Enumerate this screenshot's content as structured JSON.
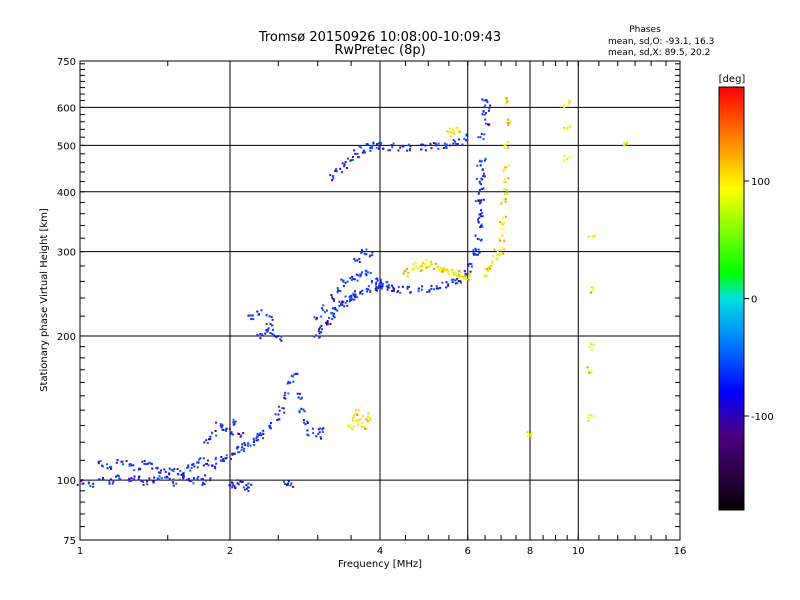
{
  "chart_data": {
    "type": "scatter",
    "title": "Tromsø 20150926 10:08:00-10:09:43",
    "subtitle": "RwPretec (8p)",
    "xlabel": "Frequency [MHz]",
    "ylabel": "Stationary phase Virtual Height [km]",
    "x_scale": "log",
    "y_scale": "log",
    "xlim": [
      1,
      16
    ],
    "ylim": [
      75,
      750
    ],
    "x_ticks": [
      1,
      2,
      4,
      6,
      8,
      10,
      16
    ],
    "x_tick_labels": [
      "1",
      "2",
      "4",
      "6",
      "8",
      "10",
      "16"
    ],
    "x_grid_major": [
      2,
      4,
      6,
      8,
      10
    ],
    "y_ticks": [
      75,
      100,
      200,
      300,
      400,
      500,
      600,
      750
    ],
    "y_tick_labels": [
      "75",
      "100",
      "200",
      "300",
      "400",
      "500",
      "600",
      "750"
    ],
    "y_grid_major": [
      100,
      200,
      300,
      400,
      500,
      600
    ],
    "grid": true,
    "info": {
      "heading": "Phases",
      "line1": "mean, sd,O: -93.1, 16.3",
      "line2": "mean, sd,X:  89.5, 20.2"
    },
    "colorbar": {
      "label": "[deg]",
      "range": [
        -180,
        180
      ],
      "ticks": [
        -100,
        0,
        100
      ],
      "tick_labels": [
        "-100",
        "0",
        "100"
      ]
    },
    "series": [
      {
        "name": "O",
        "color_hint": "blue/purple (phase ≈ -93°)",
        "traces": [
          {
            "x": [
              1.0,
              1.05,
              1.1,
              1.15,
              1.2,
              1.25,
              1.3,
              1.35,
              1.4,
              1.45,
              1.5,
              1.55,
              1.6,
              1.65,
              1.7,
              1.75,
              1.8
            ],
            "y": [
              99,
              98,
              100,
              99,
              101,
              100,
              102,
              99,
              100,
              101,
              100,
              99,
              101,
              100,
              100,
              99,
              101
            ]
          },
          {
            "x": [
              1.1,
              1.15,
              1.2,
              1.25,
              1.3,
              1.35,
              1.4,
              1.45,
              1.5
            ],
            "y": [
              108,
              107,
              109,
              108,
              106,
              108,
              107,
              105,
              104
            ]
          },
          {
            "x": [
              1.55,
              1.6,
              1.65,
              1.7,
              1.75,
              1.8,
              1.85,
              1.9,
              1.95,
              2.0,
              2.05,
              2.1,
              2.15,
              2.2,
              2.25,
              2.3
            ],
            "y": [
              104,
              103,
              106,
              108,
              110,
              109,
              107,
              110,
              111,
              112,
              115,
              116,
              118,
              120,
              122,
              124
            ]
          },
          {
            "x": [
              1.8,
              1.85,
              1.9,
              1.95,
              2.0,
              2.05,
              2.1
            ],
            "y": [
              120,
              125,
              130,
              128,
              126,
              132,
              124
            ]
          },
          {
            "x": [
              2.3,
              2.4,
              2.5,
              2.55,
              2.6,
              2.65,
              2.7,
              2.75,
              2.8,
              2.85,
              2.9,
              3.0,
              3.05
            ],
            "y": [
              125,
              130,
              135,
              140,
              150,
              160,
              165,
              150,
              140,
              132,
              126,
              124,
              128
            ]
          },
          {
            "x": [
              2.0,
              2.05,
              2.1,
              2.15,
              2.2
            ],
            "y": [
              98,
              97,
              99,
              96,
              98
            ]
          },
          {
            "x": [
              2.3,
              2.35,
              2.4,
              2.45,
              2.5
            ],
            "y": [
              200,
              205,
              210,
              203,
              198
            ]
          },
          {
            "x": [
              2.6,
              2.65
            ],
            "y": [
              99,
              98
            ]
          },
          {
            "x": [
              2.2,
              2.3,
              2.4
            ],
            "y": [
              220,
              225,
              218
            ]
          },
          {
            "x": [
              3.0,
              3.05,
              3.1,
              3.15,
              3.2,
              3.25,
              3.3,
              3.35,
              3.4,
              3.45,
              3.5,
              3.55,
              3.6,
              3.7,
              3.8,
              3.9,
              4.0
            ],
            "y": [
              200,
              205,
              210,
              215,
              220,
              225,
              230,
              232,
              235,
              238,
              240,
              242,
              245,
              248,
              250,
              252,
              255
            ]
          },
          {
            "x": [
              3.0,
              3.1,
              3.2,
              3.3,
              3.4,
              3.5,
              3.6,
              3.7,
              3.8,
              3.9,
              4.0,
              4.1,
              4.2
            ],
            "y": [
              220,
              228,
              240,
              250,
              258,
              262,
              265,
              268,
              270,
              262,
              258,
              255,
              252
            ]
          },
          {
            "x": [
              4.0,
              4.2,
              4.4,
              4.6,
              4.8,
              5.0,
              5.2,
              5.4,
              5.6,
              5.8,
              6.0,
              6.1,
              6.2,
              6.3,
              6.35
            ],
            "y": [
              255,
              252,
              250,
              249,
              250,
              251,
              253,
              255,
              258,
              262,
              270,
              280,
              300,
              350,
              420
            ]
          },
          {
            "x": [
              6.3,
              6.35,
              6.4,
              6.45,
              6.5,
              6.55,
              6.6
            ],
            "y": [
              380,
              450,
              520,
              580,
              620,
              600,
              560
            ]
          },
          {
            "x": [
              6.3,
              6.32,
              6.34,
              6.36,
              6.38,
              6.4,
              6.42,
              6.44
            ],
            "y": [
              300,
              320,
              340,
              360,
              380,
              400,
              430,
              470
            ]
          },
          {
            "x": [
              3.2,
              3.3,
              3.4,
              3.5,
              3.6,
              3.7,
              3.8,
              3.9,
              4.0
            ],
            "y": [
              430,
              440,
              455,
              470,
              480,
              490,
              495,
              500,
              498
            ]
          },
          {
            "x": [
              4.0,
              4.2,
              4.4,
              4.6,
              4.8,
              5.0,
              5.2,
              5.4,
              5.6,
              5.8,
              6.0
            ],
            "y": [
              498,
              496,
              495,
              494,
              495,
              496,
              498,
              500,
              505,
              510,
              520
            ]
          },
          {
            "x": [
              3.6,
              3.7,
              3.8
            ],
            "y": [
              290,
              300,
              295
            ]
          }
        ]
      },
      {
        "name": "X",
        "color_hint": "yellow/orange (phase ≈ 90°)",
        "traces": [
          {
            "x": [
              4.5,
              4.6,
              4.7,
              4.8,
              4.9,
              5.0,
              5.1,
              5.2,
              5.3,
              5.4,
              5.5,
              5.6,
              5.7,
              5.8,
              5.9,
              6.0
            ],
            "y": [
              270,
              275,
              280,
              278,
              285,
              282,
              280,
              278,
              276,
              275,
              274,
              272,
              270,
              268,
              266,
              265
            ]
          },
          {
            "x": [
              6.5,
              6.6,
              6.7,
              6.8,
              6.9,
              7.0,
              7.05,
              7.1,
              7.15,
              7.2,
              7.2,
              7.2
            ],
            "y": [
              270,
              275,
              280,
              290,
              300,
              320,
              350,
              400,
              450,
              500,
              560,
              620
            ]
          },
          {
            "x": [
              7.0,
              7.05,
              7.1,
              7.15
            ],
            "y": [
              300,
              340,
              380,
              420
            ]
          },
          {
            "x": [
              3.5,
              3.55,
              3.6,
              3.65,
              3.7,
              3.75,
              3.8
            ],
            "y": [
              130,
              135,
              138,
              132,
              128,
              136,
              134
            ]
          },
          {
            "x": [
              5.5,
              5.6,
              5.7
            ],
            "y": [
              530,
              535,
              540
            ]
          },
          {
            "x": [
              9.5,
              9.5,
              9.5
            ],
            "y": [
              610,
              540,
              470
            ]
          },
          {
            "x": [
              10.6,
              10.6,
              10.6,
              10.6,
              10.6
            ],
            "y": [
              320,
              250,
              190,
              170,
              135
            ]
          },
          {
            "x": [
              8.0
            ],
            "y": [
              125
            ]
          },
          {
            "x": [
              12.5
            ],
            "y": [
              500
            ]
          }
        ]
      }
    ]
  }
}
